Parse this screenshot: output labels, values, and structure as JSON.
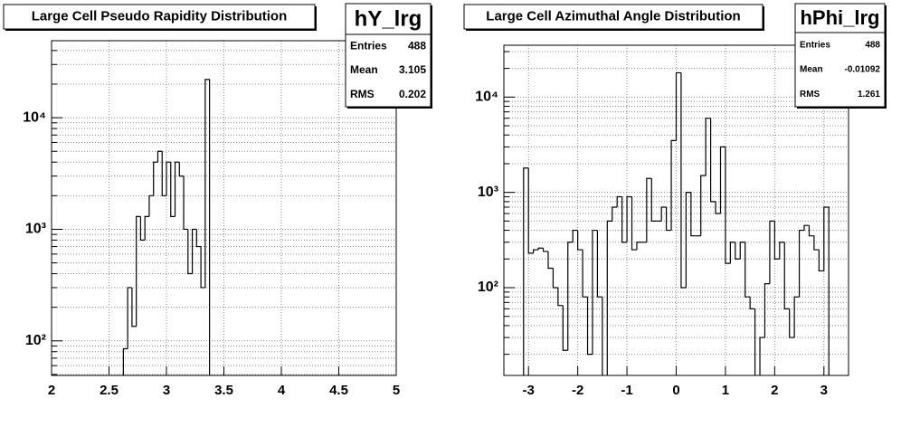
{
  "chart_data": [
    {
      "type": "histogram",
      "title": "Large Cell Pseudo Rapidity Distribution",
      "name": "hY_lrg",
      "stats": [
        {
          "label": "Entries",
          "value": 488
        },
        {
          "label": "Mean",
          "value": 3.105
        },
        {
          "label": "RMS",
          "value": 0.202
        }
      ],
      "bins": [
        2.625,
        2.6625,
        2.7,
        2.7375,
        2.775,
        2.8125,
        2.85,
        2.8875,
        2.925,
        2.9625,
        3.0,
        3.0375,
        3.075,
        3.1125,
        3.15,
        3.1875,
        3.225,
        3.2625,
        3.3,
        3.3375,
        3.375
      ],
      "values": [
        85,
        300,
        135,
        1300,
        800,
        1300,
        2000,
        4000,
        5000,
        2000,
        4000,
        1300,
        4000,
        3000,
        1000,
        400,
        1000,
        700,
        300,
        22000
      ],
      "color": "#000000",
      "log_y": true,
      "grid": true,
      "xlim": [
        2,
        5
      ],
      "xticks": [
        2,
        2.5,
        3,
        3.5,
        4,
        4.5,
        5
      ],
      "ylim": [
        49,
        49000
      ],
      "yticks": [
        {
          "value": 100,
          "label": "10²"
        },
        {
          "value": 1000,
          "label": "10³"
        },
        {
          "value": 10000,
          "label": "10⁴"
        }
      ],
      "minor_yticks": [
        50,
        60,
        70,
        80,
        90,
        200,
        300,
        400,
        500,
        600,
        700,
        800,
        900,
        2000,
        3000,
        4000,
        5000,
        6000,
        7000,
        8000,
        9000,
        20000,
        30000,
        40000
      ]
    },
    {
      "type": "histogram",
      "title": "Large Cell Azimuthal Angle Distribution",
      "name": "hPhi_lrg",
      "stats": [
        {
          "label": "Entries",
          "value": 488
        },
        {
          "label": "Mean",
          "value": -0.01092
        },
        {
          "label": "RMS",
          "value": 1.261
        }
      ],
      "bins": [
        -3.1,
        -3.0,
        -2.9,
        -2.8,
        -2.7,
        -2.6,
        -2.5,
        -2.4,
        -2.3,
        -2.2,
        -2.1,
        -2.0,
        -1.9,
        -1.8,
        -1.7,
        -1.6,
        -1.5,
        -1.4,
        -1.3,
        -1.2,
        -1.1,
        -1.0,
        -0.9,
        -0.8,
        -0.7,
        -0.6,
        -0.5,
        -0.4,
        -0.3,
        -0.2,
        -0.1,
        0,
        0.1,
        0.2,
        0.3,
        0.4,
        0.5,
        0.6,
        0.7,
        0.8,
        0.9,
        1.0,
        1.1,
        1.2,
        1.3,
        1.4,
        1.5,
        1.6,
        1.7,
        1.8,
        1.9,
        2.0,
        2.1,
        2.2,
        2.3,
        2.4,
        2.5,
        2.6,
        2.7,
        2.8,
        2.9,
        3.0,
        3.1
      ],
      "values": [
        1800,
        230,
        250,
        260,
        240,
        160,
        100,
        65,
        22,
        300,
        400,
        250,
        80,
        20,
        400,
        80,
        10,
        500,
        700,
        900,
        300,
        900,
        250,
        300,
        300,
        1400,
        500,
        500,
        700,
        400,
        3500,
        18000,
        100,
        1000,
        350,
        350,
        1500,
        6000,
        800,
        600,
        3000,
        180,
        300,
        200,
        300,
        80,
        60,
        10,
        30,
        110,
        500,
        200,
        300,
        60,
        30,
        80,
        400,
        450,
        350,
        250,
        150,
        700
      ],
      "color": "#000000",
      "log_y": true,
      "grid": true,
      "xlim": [
        -3.5,
        3.5
      ],
      "xticks": [
        -3,
        -2,
        -1,
        0,
        1,
        2,
        3
      ],
      "ylim": [
        12,
        35000
      ],
      "yticks": [
        {
          "value": 100,
          "label": "10²"
        },
        {
          "value": 1000,
          "label": "10³"
        },
        {
          "value": 10000,
          "label": "10⁴"
        }
      ],
      "minor_yticks": [
        20,
        30,
        40,
        50,
        60,
        70,
        80,
        90,
        200,
        300,
        400,
        500,
        600,
        700,
        800,
        900,
        2000,
        3000,
        4000,
        5000,
        6000,
        7000,
        8000,
        9000,
        20000,
        30000
      ]
    }
  ]
}
